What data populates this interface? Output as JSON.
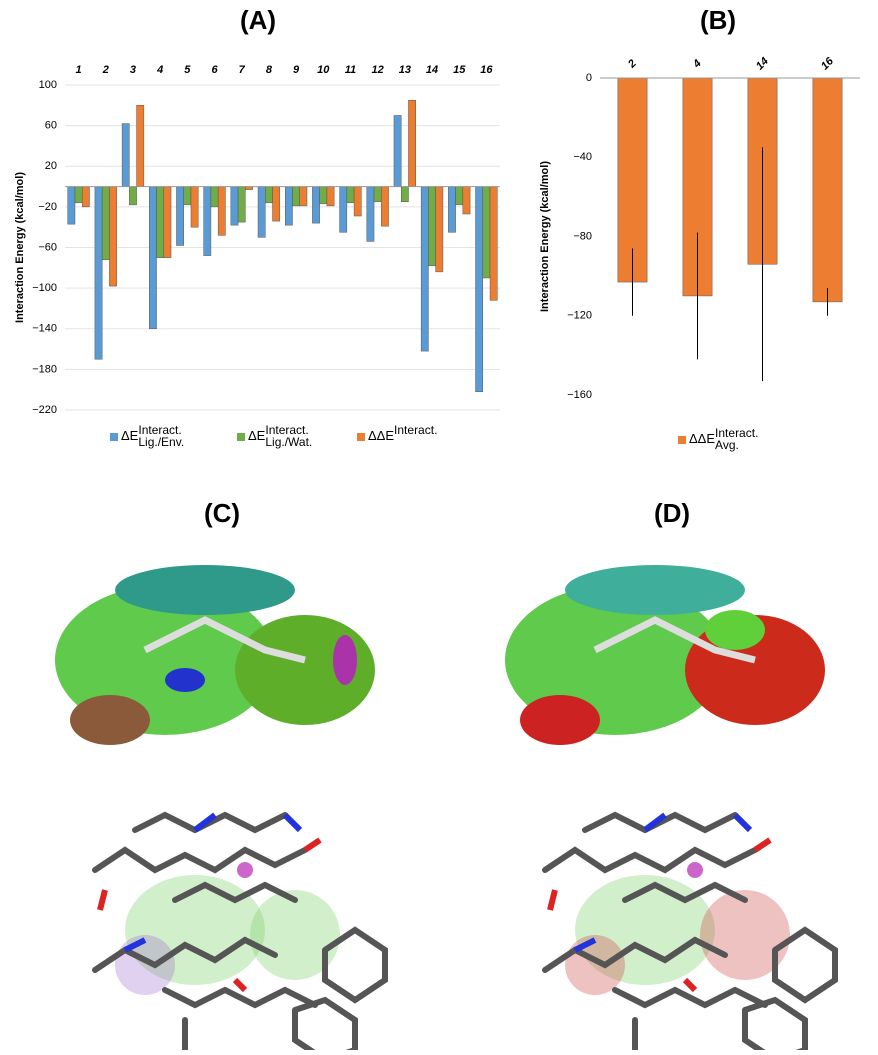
{
  "chart_data": [
    {
      "type": "bar",
      "title": "(A)",
      "y_label": "Interaction Energy (kcal/mol)",
      "categories": [
        "1",
        "2",
        "3",
        "4",
        "5",
        "6",
        "7",
        "8",
        "9",
        "10",
        "11",
        "12",
        "13",
        "14",
        "15",
        "16"
      ],
      "ylim": [
        -220,
        100
      ],
      "yticks": [
        100,
        60,
        20,
        {
          "value": -20,
          "label": "−20"
        },
        {
          "value": -60,
          "label": "−60"
        },
        {
          "value": -100,
          "label": "−100"
        },
        {
          "value": -140,
          "label": "−140"
        },
        {
          "value": -180,
          "label": "−180"
        },
        {
          "value": -220,
          "label": "−220"
        }
      ],
      "grid": true,
      "series": [
        {
          "name": "ΔE",
          "name_sup": "Interact.",
          "name_sub": "Lig./Env.",
          "color": "#5b9bd5",
          "values": [
            -37,
            -170,
            62,
            -140,
            -58,
            -68,
            -38,
            -50,
            -38,
            -36,
            -45,
            -54,
            70,
            -162,
            -45,
            -202
          ]
        },
        {
          "name": "ΔE",
          "name_sup": "Interact.",
          "name_sub": "Lig./Wat.",
          "color": "#70ad47",
          "values": [
            -16,
            -72,
            -18,
            -70,
            -18,
            -20,
            -35,
            -16,
            -19,
            -17,
            -16,
            -15,
            -15,
            -78,
            -18,
            -90
          ]
        },
        {
          "name": "ΔΔE",
          "name_sup": "Interact.",
          "name_sub": "",
          "color": "#ed7d31",
          "values": [
            -20,
            -98,
            80,
            -70,
            -40,
            -48,
            -3,
            -34,
            -19,
            -19,
            -29,
            -39,
            85,
            -84,
            -27,
            -112
          ]
        }
      ]
    },
    {
      "type": "bar",
      "title": "(B)",
      "y_label": "Interaction Energy (kcal/mol)",
      "categories": [
        "2",
        "4",
        "14",
        "16"
      ],
      "ylim": [
        -160,
        0
      ],
      "yticks": [
        0,
        {
          "value": -40,
          "label": "−40"
        },
        {
          "value": -80,
          "label": "−80"
        },
        {
          "value": -120,
          "label": "−120"
        },
        {
          "value": -160,
          "label": "−160"
        }
      ],
      "grid": false,
      "series": [
        {
          "name": "ΔΔE",
          "name_sup": "Interact.",
          "name_sub": "Avg.",
          "color": "#ed7d31",
          "values": [
            -103,
            -110,
            -94,
            -113
          ],
          "errors": [
            17,
            32,
            59,
            7
          ]
        }
      ]
    }
  ],
  "panels": [
    {
      "title": "(C)"
    },
    {
      "title": "(D)"
    }
  ]
}
